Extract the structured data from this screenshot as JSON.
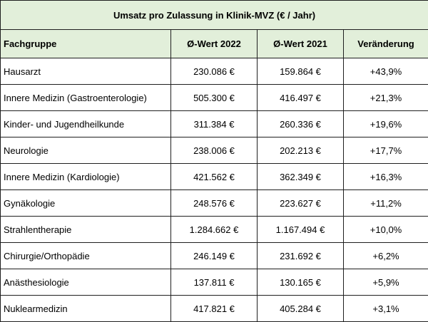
{
  "table": {
    "title": "Umsatz pro Zulassung in Klinik-MVZ (€ / Jahr)",
    "headers": [
      "Fachgruppe",
      "Ø-Wert 2022",
      "Ø-Wert 2021",
      "Veränderung"
    ],
    "rows": [
      [
        "Hausarzt",
        "230.086 €",
        "159.864 €",
        "+43,9%"
      ],
      [
        "Innere Medizin (Gastroenterologie)",
        "505.300 €",
        "416.497 €",
        "+21,3%"
      ],
      [
        "Kinder- und Jugendheilkunde",
        "311.384 €",
        "260.336 €",
        "+19,6%"
      ],
      [
        "Neurologie",
        "238.006 €",
        "202.213 €",
        "+17,7%"
      ],
      [
        "Innere Medizin (Kardiologie)",
        "421.562 €",
        "362.349 €",
        "+16,3%"
      ],
      [
        "Gynäkologie",
        "248.576 €",
        "223.627 €",
        "+11,2%"
      ],
      [
        "Strahlentherapie",
        "1.284.662 €",
        "1.167.494 €",
        "+10,0%"
      ],
      [
        "Chirurgie/Orthopädie",
        "246.149 €",
        "231.692 €",
        "+6,2%"
      ],
      [
        "Anästhesiologie",
        "137.811 €",
        "130.165 €",
        "+5,9%"
      ],
      [
        "Nuklearmedizin",
        "417.821 €",
        "405.284 €",
        "+3,1%"
      ]
    ]
  }
}
